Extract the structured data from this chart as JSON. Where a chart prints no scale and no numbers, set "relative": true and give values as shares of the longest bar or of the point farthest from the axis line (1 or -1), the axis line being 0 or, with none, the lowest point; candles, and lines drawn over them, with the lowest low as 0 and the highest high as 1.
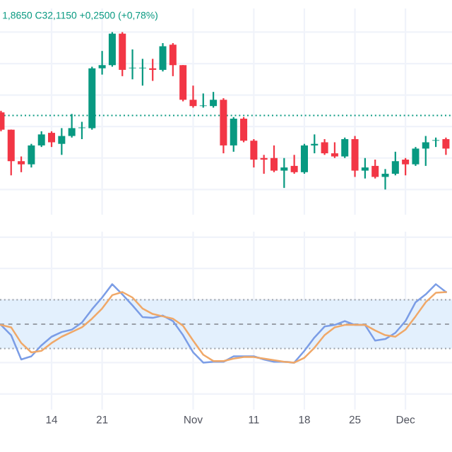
{
  "chart_data": [
    {
      "type": "candlestick",
      "relative": true,
      "grid": true,
      "tick_labels": false,
      "annotations": [
        "1,8650 C32,1150 +0,2500 (+0,78%)"
      ],
      "categories": [
        null,
        null,
        null,
        null,
        null,
        null,
        null,
        null,
        null,
        null,
        null,
        null,
        null,
        null,
        null,
        null,
        null,
        null,
        null,
        null,
        null,
        null,
        null,
        null,
        null,
        null,
        null,
        null,
        null,
        null,
        null,
        null,
        null,
        null,
        null,
        null,
        null,
        null,
        null,
        null,
        null,
        null,
        null,
        null,
        null
      ],
      "ohlc": [
        [
          0.49,
          0.5,
          0.37,
          0.38
        ],
        [
          0.38,
          0.38,
          0.09,
          0.18
        ],
        [
          0.18,
          0.21,
          0.11,
          0.16
        ],
        [
          0.16,
          0.29,
          0.14,
          0.28
        ],
        [
          0.28,
          0.37,
          0.27,
          0.35
        ],
        [
          0.36,
          0.37,
          0.27,
          0.3
        ],
        [
          0.29,
          0.39,
          0.22,
          0.34
        ],
        [
          0.34,
          0.48,
          0.33,
          0.39
        ],
        [
          0.39,
          0.43,
          0.32,
          0.39
        ],
        [
          0.39,
          0.78,
          0.38,
          0.77
        ],
        [
          0.77,
          0.88,
          0.73,
          0.79
        ],
        [
          0.79,
          1.0,
          0.78,
          0.99
        ],
        [
          0.99,
          1.0,
          0.72,
          0.76
        ],
        [
          0.77,
          0.89,
          0.7,
          0.77
        ],
        [
          0.77,
          0.83,
          0.66,
          0.77
        ],
        [
          0.77,
          0.83,
          0.69,
          0.76
        ],
        [
          0.76,
          0.93,
          0.75,
          0.91
        ],
        [
          0.92,
          0.93,
          0.72,
          0.79
        ],
        [
          0.79,
          0.79,
          0.56,
          0.57
        ],
        [
          0.57,
          0.66,
          0.52,
          0.53
        ],
        [
          0.53,
          0.61,
          0.52,
          0.53
        ],
        [
          0.53,
          0.62,
          0.52,
          0.57
        ],
        [
          0.57,
          0.58,
          0.23,
          0.28
        ],
        [
          0.28,
          0.46,
          0.24,
          0.45
        ],
        [
          0.45,
          0.46,
          0.3,
          0.31
        ],
        [
          0.31,
          0.32,
          0.14,
          0.19
        ],
        [
          0.2,
          0.22,
          0.1,
          0.19
        ],
        [
          0.2,
          0.28,
          0.11,
          0.12
        ],
        [
          0.12,
          0.2,
          0.01,
          0.14
        ],
        [
          0.15,
          0.22,
          0.1,
          0.11
        ],
        [
          0.11,
          0.29,
          0.1,
          0.28
        ],
        [
          0.28,
          0.35,
          0.23,
          0.29
        ],
        [
          0.3,
          0.32,
          0.22,
          0.23
        ],
        [
          0.23,
          0.3,
          0.2,
          0.21
        ],
        [
          0.21,
          0.33,
          0.2,
          0.32
        ],
        [
          0.32,
          0.34,
          0.08,
          0.12
        ],
        [
          0.12,
          0.2,
          0.07,
          0.14
        ],
        [
          0.15,
          0.19,
          0.07,
          0.08
        ],
        [
          0.08,
          0.13,
          0.0,
          0.1
        ],
        [
          0.1,
          0.24,
          0.09,
          0.18
        ],
        [
          0.19,
          0.2,
          0.09,
          0.16
        ],
        [
          0.16,
          0.27,
          0.15,
          0.26
        ],
        [
          0.26,
          0.34,
          0.15,
          0.3
        ],
        [
          0.31,
          0.33,
          0.27,
          0.31
        ],
        [
          0.32,
          0.33,
          0.22,
          0.26
        ]
      ],
      "ref_lines": [
        {
          "axis": "y",
          "value": 0.47,
          "color": "#089981",
          "line_style": "dotted"
        }
      ]
    },
    {
      "type": "line",
      "relative": true,
      "grid": true,
      "tick_labels": "x",
      "categories": [
        null,
        null,
        null,
        null,
        null,
        "14",
        null,
        null,
        null,
        null,
        "21",
        null,
        null,
        null,
        null,
        null,
        null,
        null,
        null,
        "Nov",
        null,
        null,
        null,
        null,
        null,
        "11",
        null,
        null,
        null,
        null,
        "18",
        null,
        null,
        null,
        null,
        "25",
        null,
        null,
        null,
        null,
        "Dec",
        null,
        null,
        null,
        null
      ],
      "series": [
        {
          "color": "#7b9de6",
          "values": [
            0.48,
            0.35,
            0.04,
            0.08,
            0.22,
            0.33,
            0.39,
            0.42,
            0.51,
            0.68,
            0.83,
            1.0,
            0.87,
            0.73,
            0.58,
            0.57,
            0.6,
            0.53,
            0.35,
            0.13,
            0.0,
            0.01,
            0.01,
            0.08,
            0.08,
            0.08,
            0.04,
            0.01,
            0.01,
            0.0,
            0.15,
            0.32,
            0.46,
            0.48,
            0.53,
            0.48,
            0.48,
            0.28,
            0.3,
            0.38,
            0.53,
            0.77,
            0.87,
            1.0,
            0.9
          ]
        },
        {
          "color": "#f0a868",
          "values": [
            0.48,
            0.45,
            0.25,
            0.13,
            0.15,
            0.25,
            0.33,
            0.39,
            0.45,
            0.56,
            0.69,
            0.86,
            0.9,
            0.83,
            0.69,
            0.62,
            0.59,
            0.56,
            0.47,
            0.28,
            0.1,
            0.02,
            0.02,
            0.05,
            0.07,
            0.07,
            0.05,
            0.03,
            0.01,
            0.0,
            0.06,
            0.19,
            0.35,
            0.45,
            0.48,
            0.48,
            0.48,
            0.41,
            0.35,
            0.33,
            0.42,
            0.59,
            0.77,
            0.89,
            0.9
          ]
        }
      ],
      "bands": [
        {
          "axis": "y",
          "from": 0.18,
          "to": 0.8,
          "color": "#e3f0fd"
        }
      ],
      "ref_lines": [
        {
          "axis": "y",
          "value": 0.8,
          "color": "#9aa0a8",
          "line_style": "dotted"
        },
        {
          "axis": "y",
          "value": 0.49,
          "color": "#9aa0a8",
          "line_style": "dashed"
        },
        {
          "axis": "y",
          "value": 0.18,
          "color": "#9aa0a8",
          "line_style": "dotted"
        }
      ]
    }
  ]
}
